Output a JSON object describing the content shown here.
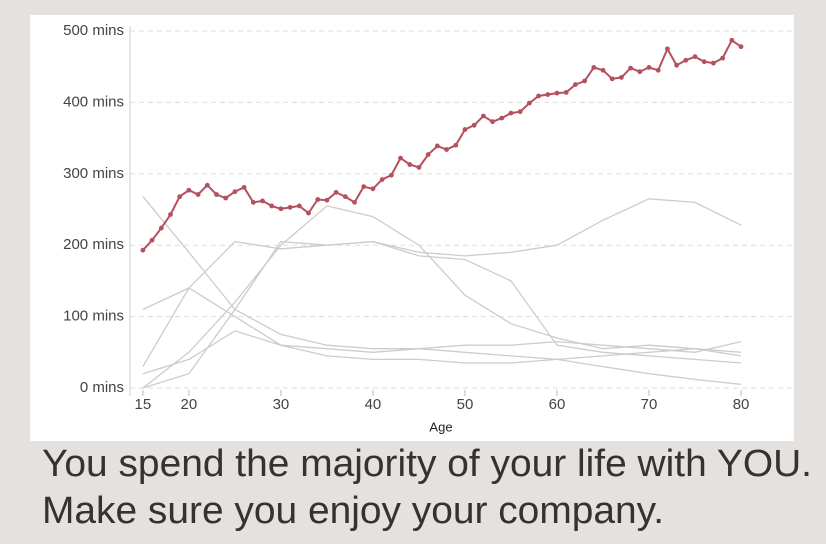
{
  "chart_data": {
    "type": "line",
    "xlabel": "Age",
    "x": [
      15,
      16,
      17,
      18,
      19,
      20,
      21,
      22,
      23,
      24,
      25,
      26,
      27,
      28,
      29,
      30,
      31,
      32,
      33,
      34,
      35,
      36,
      37,
      38,
      39,
      40,
      41,
      42,
      43,
      44,
      45,
      46,
      47,
      48,
      49,
      50,
      51,
      52,
      53,
      54,
      55,
      56,
      57,
      58,
      59,
      60,
      61,
      62,
      63,
      64,
      65,
      66,
      67,
      68,
      69,
      70,
      71,
      72,
      73,
      74,
      75,
      76,
      77,
      78,
      79,
      80
    ],
    "series": [
      {
        "color": "#cccccc",
        "x": [
          15,
          20,
          25,
          30,
          35,
          40,
          45,
          50,
          55,
          60,
          65,
          70,
          75,
          80
        ],
        "values": [
          268,
          190,
          110,
          75,
          60,
          55,
          55,
          50,
          45,
          40,
          30,
          20,
          12,
          5
        ]
      },
      {
        "color": "#cccccc",
        "x": [
          15,
          20,
          25,
          30,
          35,
          40,
          45,
          50,
          55,
          60,
          65,
          70,
          75,
          80
        ],
        "values": [
          110,
          140,
          100,
          60,
          55,
          50,
          55,
          60,
          60,
          65,
          60,
          55,
          50,
          65
        ]
      },
      {
        "color": "#cccccc",
        "x": [
          15,
          20,
          25,
          30,
          35,
          40,
          45,
          50,
          55,
          60,
          65,
          70,
          75,
          80
        ],
        "values": [
          0,
          20,
          110,
          205,
          200,
          205,
          185,
          180,
          150,
          60,
          50,
          45,
          40,
          35
        ]
      },
      {
        "color": "#cccccc",
        "x": [
          15,
          20,
          25,
          30,
          35,
          40,
          45,
          50,
          55,
          60,
          65,
          70,
          75,
          80
        ],
        "values": [
          30,
          140,
          205,
          195,
          200,
          205,
          190,
          185,
          190,
          200,
          235,
          265,
          260,
          228
        ]
      },
      {
        "color": "#cccccc",
        "x": [
          15,
          20,
          25,
          30,
          35,
          40,
          45,
          50,
          55,
          60,
          65,
          70,
          75,
          80
        ],
        "values": [
          0,
          50,
          120,
          200,
          255,
          240,
          200,
          130,
          90,
          70,
          55,
          60,
          55,
          45
        ]
      },
      {
        "color": "#cccccc",
        "x": [
          15,
          20,
          25,
          30,
          35,
          40,
          45,
          50,
          55,
          60,
          65,
          70,
          75,
          80
        ],
        "values": [
          20,
          40,
          80,
          60,
          45,
          40,
          40,
          35,
          35,
          40,
          45,
          50,
          55,
          50
        ]
      },
      {
        "color": "#b5505f",
        "markers": true,
        "values": [
          193,
          207,
          224,
          243,
          268,
          277,
          271,
          284,
          271,
          266,
          275,
          281,
          260,
          262,
          255,
          251,
          253,
          255,
          245,
          264,
          263,
          274,
          268,
          260,
          282,
          279,
          292,
          298,
          322,
          313,
          309,
          327,
          339,
          334,
          340,
          362,
          368,
          381,
          373,
          378,
          385,
          387,
          399,
          409,
          411,
          413,
          414,
          425,
          430,
          449,
          445,
          433,
          435,
          448,
          443,
          449,
          445,
          475,
          452,
          459,
          464,
          457,
          455,
          462,
          487,
          478
        ]
      }
    ],
    "xlim": [
      13.6,
      81.3
    ],
    "xticks": [
      15,
      20,
      30,
      40,
      50,
      60,
      70,
      80
    ],
    "ylim": [
      0,
      500
    ],
    "yticks": [
      {
        "value": 0,
        "label": "0 mins"
      },
      {
        "value": 100,
        "label": "100 mins"
      },
      {
        "value": 200,
        "label": "200 mins"
      },
      {
        "value": 300,
        "label": "300 mins"
      },
      {
        "value": 400,
        "label": "400 mins"
      },
      {
        "value": 500,
        "label": "500 mins"
      }
    ],
    "grid": true
  },
  "caption": [
    "You spend the majority of your life with YOU.",
    "Make sure you enjoy your company."
  ]
}
